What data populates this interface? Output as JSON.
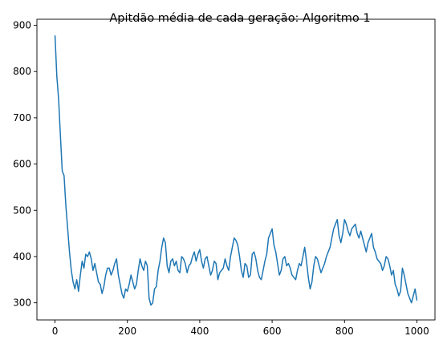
{
  "chart_data": {
    "type": "line",
    "title": "Apitdão média de cada geração: Algoritmo 1",
    "xlabel": "",
    "ylabel": "",
    "xlim": [
      -50,
      1050
    ],
    "ylim": [
      263,
      913
    ],
    "xticks": [
      0,
      200,
      400,
      600,
      800,
      1000
    ],
    "yticks": [
      300,
      400,
      500,
      600,
      700,
      800,
      900
    ],
    "grid": false,
    "legend": "none",
    "line_color": "#1f77b4",
    "series": [
      {
        "x": [
          0,
          5,
          10,
          15,
          20,
          25,
          30,
          35,
          40,
          45,
          50,
          55,
          60,
          65,
          70,
          75,
          80,
          85,
          90,
          95,
          100,
          105,
          110,
          115,
          120,
          125,
          130,
          135,
          140,
          145,
          150,
          155,
          160,
          165,
          170,
          175,
          180,
          185,
          190,
          195,
          200,
          205,
          210,
          215,
          220,
          225,
          230,
          235,
          240,
          245,
          250,
          255,
          260,
          265,
          270,
          275,
          280,
          285,
          290,
          295,
          300,
          305,
          310,
          315,
          320,
          325,
          330,
          335,
          340,
          345,
          350,
          355,
          360,
          365,
          370,
          375,
          380,
          385,
          390,
          395,
          400,
          405,
          410,
          415,
          420,
          425,
          430,
          435,
          440,
          445,
          450,
          455,
          460,
          465,
          470,
          475,
          480,
          485,
          490,
          495,
          500,
          505,
          510,
          515,
          520,
          525,
          530,
          535,
          540,
          545,
          550,
          555,
          560,
          565,
          570,
          575,
          580,
          585,
          590,
          595,
          600,
          605,
          610,
          615,
          620,
          625,
          630,
          635,
          640,
          645,
          650,
          655,
          660,
          665,
          670,
          675,
          680,
          685,
          690,
          695,
          700,
          705,
          710,
          715,
          720,
          725,
          730,
          735,
          740,
          745,
          750,
          755,
          760,
          765,
          770,
          775,
          780,
          785,
          790,
          795,
          800,
          805,
          810,
          815,
          820,
          825,
          830,
          835,
          840,
          845,
          850,
          855,
          860,
          865,
          870,
          875,
          880,
          885,
          890,
          895,
          900,
          905,
          910,
          915,
          920,
          925,
          930,
          935,
          940,
          945,
          950,
          955,
          960,
          965,
          970,
          975,
          980,
          985,
          990,
          995,
          1000
        ],
        "values": [
          878,
          790,
          740,
          660,
          585,
          575,
          510,
          460,
          410,
          370,
          345,
          330,
          350,
          325,
          360,
          390,
          375,
          405,
          400,
          410,
          395,
          370,
          385,
          365,
          345,
          340,
          320,
          335,
          360,
          375,
          375,
          360,
          370,
          385,
          395,
          360,
          340,
          320,
          310,
          330,
          325,
          340,
          360,
          345,
          330,
          340,
          370,
          395,
          380,
          370,
          390,
          380,
          310,
          295,
          300,
          330,
          335,
          370,
          390,
          420,
          440,
          430,
          380,
          365,
          390,
          395,
          380,
          390,
          370,
          365,
          400,
          395,
          385,
          365,
          380,
          385,
          400,
          410,
          390,
          405,
          415,
          390,
          375,
          395,
          400,
          380,
          360,
          370,
          390,
          385,
          350,
          365,
          370,
          375,
          395,
          380,
          370,
          400,
          420,
          440,
          435,
          425,
          400,
          370,
          355,
          385,
          380,
          355,
          360,
          405,
          410,
          395,
          370,
          355,
          350,
          370,
          390,
          405,
          440,
          450,
          460,
          425,
          410,
          385,
          360,
          370,
          395,
          400,
          380,
          385,
          375,
          360,
          355,
          350,
          370,
          385,
          380,
          400,
          420,
          390,
          355,
          330,
          345,
          380,
          400,
          395,
          380,
          365,
          375,
          385,
          400,
          410,
          420,
          440,
          460,
          470,
          480,
          445,
          430,
          450,
          480,
          470,
          455,
          445,
          460,
          465,
          470,
          450,
          440,
          455,
          440,
          425,
          410,
          430,
          440,
          450,
          420,
          410,
          395,
          390,
          385,
          370,
          380,
          400,
          395,
          380,
          360,
          370,
          340,
          330,
          315,
          325,
          375,
          360,
          340,
          320,
          310,
          300,
          315,
          330,
          305
        ]
      }
    ]
  }
}
